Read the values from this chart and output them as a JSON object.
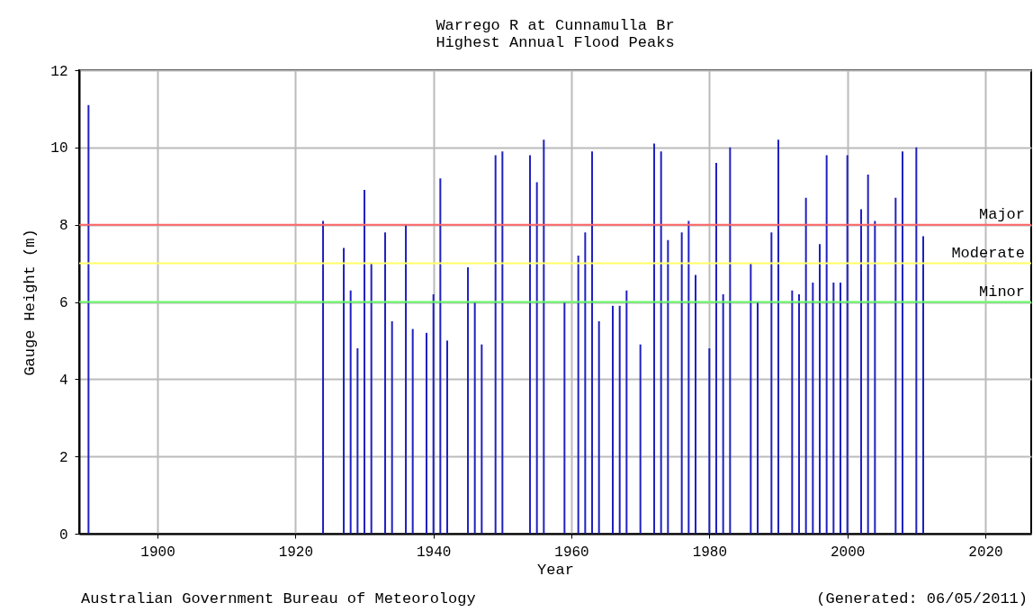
{
  "chart_data": {
    "type": "bar",
    "title": "Warrego R at Cunnamulla Br",
    "subtitle": "Highest Annual Flood Peaks",
    "xlabel": "Year",
    "ylabel": "Gauge Height (m)",
    "x": [
      1890,
      1924,
      1927,
      1928,
      1929,
      1930,
      1931,
      1933,
      1934,
      1936,
      1937,
      1939,
      1940,
      1941,
      1942,
      1945,
      1946,
      1947,
      1949,
      1950,
      1954,
      1955,
      1956,
      1959,
      1961,
      1962,
      1963,
      1964,
      1966,
      1967,
      1968,
      1970,
      1972,
      1973,
      1974,
      1976,
      1977,
      1978,
      1980,
      1981,
      1982,
      1983,
      1986,
      1987,
      1989,
      1990,
      1992,
      1993,
      1994,
      1995,
      1996,
      1997,
      1998,
      1999,
      2000,
      2002,
      2003,
      2004,
      2007,
      2008,
      2010,
      2011
    ],
    "series": [
      {
        "color": "#2020c0",
        "values": [
          11.1,
          8.1,
          7.4,
          6.3,
          4.8,
          8.9,
          7.0,
          7.8,
          5.5,
          8.0,
          5.3,
          5.2,
          6.2,
          9.2,
          5.0,
          6.9,
          6.0,
          4.9,
          9.8,
          9.9,
          9.8,
          9.1,
          10.2,
          6.0,
          7.2,
          7.8,
          9.9,
          5.5,
          5.9,
          5.9,
          6.3,
          4.9,
          10.1,
          9.9,
          7.6,
          7.8,
          8.1,
          6.7,
          4.8,
          9.6,
          6.2,
          10.0,
          7.0,
          6.0,
          7.8,
          10.2,
          6.3,
          6.2,
          8.7,
          6.5,
          7.5,
          9.8,
          6.5,
          6.5,
          9.8,
          8.4,
          9.3,
          8.1,
          8.7,
          9.9,
          10.0,
          7.7
        ]
      }
    ],
    "xlim": [
      1889.3,
      2026
    ],
    "xticks": [
      1900,
      1920,
      1940,
      1960,
      1980,
      2000,
      2020
    ],
    "ylim": [
      0,
      12
    ],
    "yticks": [
      0,
      2,
      4,
      6,
      8,
      10,
      12
    ],
    "grid": true,
    "ref_lines": [
      {
        "axis": "y",
        "value": 8,
        "label": "Major",
        "color": "#ff6666"
      },
      {
        "axis": "y",
        "value": 7,
        "label": "Moderate",
        "color": "#ffff66"
      },
      {
        "axis": "y",
        "value": 6,
        "label": "Minor",
        "color": "#66ff66"
      }
    ],
    "annotations": [
      "Australian Government Bureau of Meteorology",
      "(Generated: 06/05/2011)"
    ]
  }
}
